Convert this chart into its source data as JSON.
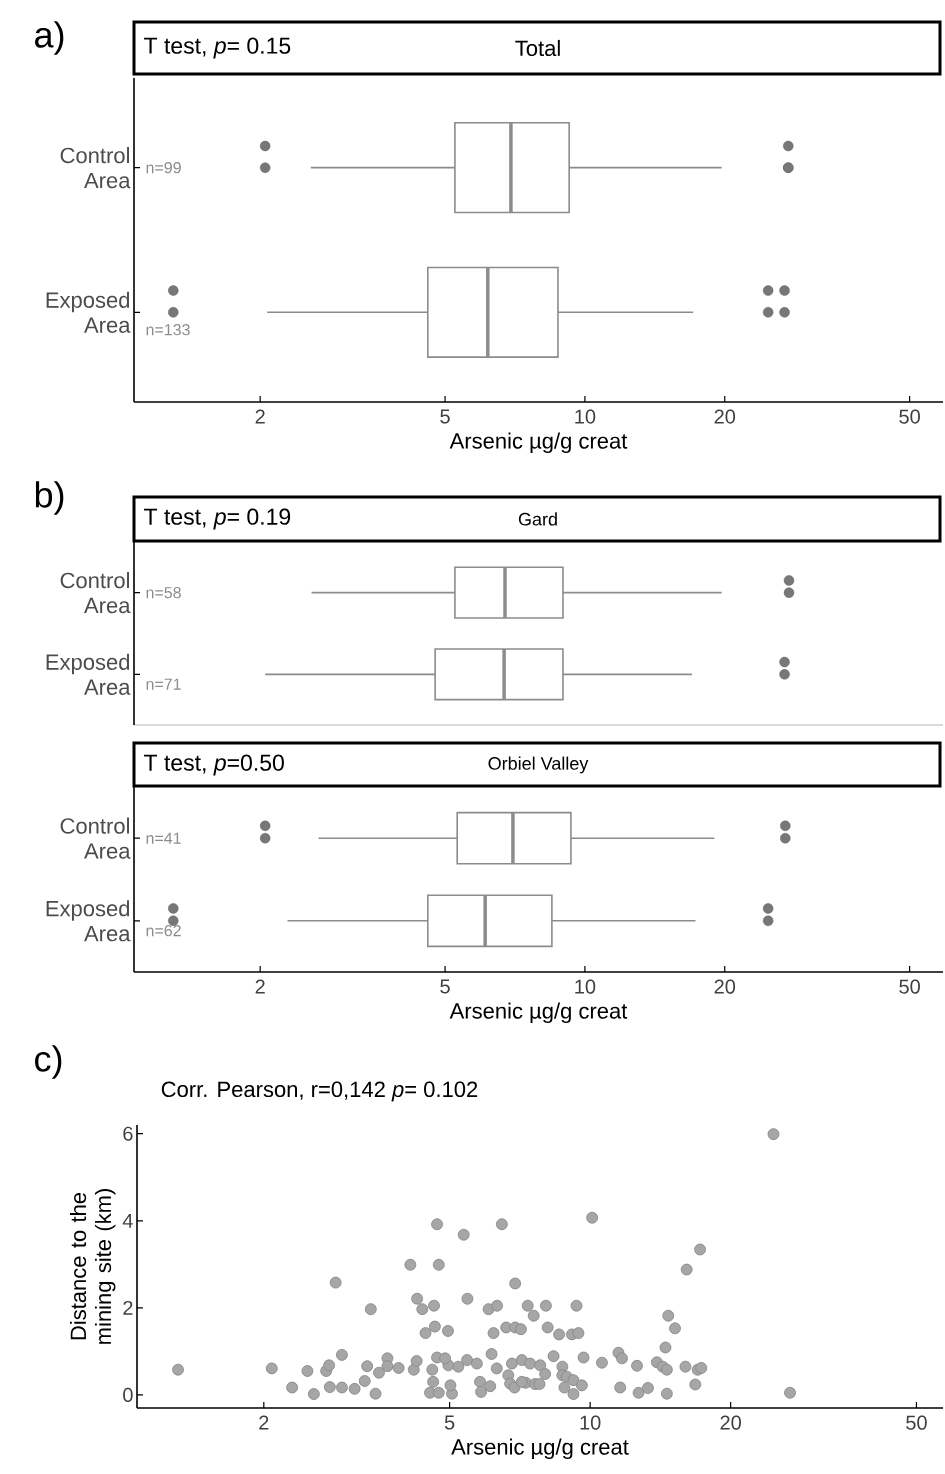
{
  "chart_data": [
    {
      "type": "box",
      "orientation": "horizontal",
      "log": "x",
      "title": "Total",
      "xlabel": "Arsenic µg/g creat",
      "categories": [
        "Control Area",
        "Exposed Area"
      ],
      "color": "#8c8c8c",
      "xlim": [
        1.07,
        59
      ],
      "xticks": [
        2,
        5,
        10,
        20,
        50
      ],
      "boxes": [
        {
          "low": 2.57,
          "q1": 5.25,
          "median": 6.93,
          "q3": 9.25,
          "high": 19.7,
          "outliers": [
            2.05,
            2.05,
            27.4,
            27.4,
            27.4
          ]
        },
        {
          "low": 2.07,
          "q1": 4.59,
          "median": 6.18,
          "q3": 8.75,
          "high": 17.1,
          "outliers": [
            1.3,
            1.3,
            24.8,
            24.8,
            26.9,
            26.9
          ]
        }
      ],
      "annotations": [
        "a)",
        "T test, *p*= 0.15",
        "n=99",
        "n=133"
      ]
    },
    {
      "type": "box",
      "orientation": "horizontal",
      "log": "x",
      "title": "Gard",
      "categories": [
        "Control Area",
        "Exposed Area"
      ],
      "color": "#8c8c8c",
      "xlim": [
        1.07,
        59
      ],
      "xticks": [
        2,
        5,
        10,
        20,
        50
      ],
      "tick_labels": "y",
      "boxes": [
        {
          "low": 2.58,
          "q1": 5.25,
          "median": 6.73,
          "q3": 8.97,
          "high": 19.7,
          "outliers": [
            27.5,
            27.5
          ]
        },
        {
          "low": 2.05,
          "q1": 4.76,
          "median": 6.7,
          "q3": 8.97,
          "high": 17.0,
          "outliers": [
            26.9,
            26.9
          ]
        }
      ],
      "annotations": [
        "b)",
        "T test, *p*= 0.19",
        "n=58",
        "n=71"
      ]
    },
    {
      "type": "box",
      "orientation": "horizontal",
      "log": "x",
      "title": "Orbiel Valley",
      "xlabel": "Arsenic µg/g creat",
      "categories": [
        "Control Area",
        "Exposed Area"
      ],
      "color": "#8c8c8c",
      "xlim": [
        1.07,
        59
      ],
      "xticks": [
        2,
        5,
        10,
        20,
        50
      ],
      "boxes": [
        {
          "low": 2.67,
          "q1": 5.31,
          "median": 7.0,
          "q3": 9.33,
          "high": 19.0,
          "outliers": [
            2.05,
            2.05,
            27.0,
            27.0
          ]
        },
        {
          "low": 2.29,
          "q1": 4.59,
          "median": 6.1,
          "q3": 8.49,
          "high": 17.3,
          "outliers": [
            1.3,
            1.3,
            24.8,
            24.8
          ]
        }
      ],
      "annotations": [
        "T test, *p*=0.50",
        "n=41",
        "n=62"
      ]
    },
    {
      "type": "scatter",
      "log": "x",
      "title": "Corr. Pearson, r=0,142 *p*= 0.102",
      "xlabel": "Arsenic µg/g creat",
      "ylabel": "Distance to the mining site (km)",
      "color": "#a6a6a6",
      "marker": "circle",
      "xlim": [
        1.07,
        57
      ],
      "ylim": [
        -0.3,
        6.2
      ],
      "xticks": [
        2,
        5,
        10,
        20,
        50
      ],
      "yticks": [
        0,
        2,
        4,
        6
      ],
      "x": [
        1.31,
        2.08,
        2.3,
        2.56,
        2.48,
        2.72,
        2.76,
        2.77,
        2.85,
        2.94,
        2.94,
        3.13,
        3.29,
        3.39,
        3.47,
        3.33,
        3.53,
        3.68,
        3.68,
        3.89,
        4.12,
        4.19,
        4.25,
        4.26,
        4.37,
        4.44,
        4.54,
        4.61,
        4.63,
        4.65,
        4.7,
        4.74,
        4.7,
        4.74,
        4.59,
        4.96,
        5.36,
        5.46,
        6.06,
        6.32,
        6.21,
        6.47,
        6.61,
        6.91,
        7.11,
        6.91,
        7.35,
        7.57,
        8.04,
        8.11,
        8.58,
        9.14,
        9.44,
        9.35,
        10.1,
        9.68,
        10.6,
        11.5,
        11.7,
        11.6,
        12.6,
        12.7,
        13.3,
        13.9,
        14.3,
        14.6,
        14.5,
        14.7,
        15.2,
        14.6,
        16.0,
        16.1,
        17.2,
        17.0,
        17.3,
        16.8,
        24.7,
        26.8,
        4.97,
        5.22,
        5.45,
        5.72,
        5.06,
        5.02,
        5.81,
        5.84,
        6.11,
        6.15,
        6.31,
        6.68,
        6.74,
        6.89,
        6.8,
        7.14,
        7.28,
        7.44,
        7.62,
        7.82,
        7.79,
        8.01,
        8.35,
        8.72,
        8.72,
        8.81,
        8.91,
        9.21,
        9.21,
        9.6,
        7.14,
        4.89
      ],
      "values": [
        0.58,
        0.61,
        0.17,
        0.02,
        0.55,
        0.55,
        0.68,
        0.18,
        2.58,
        0.92,
        0.17,
        0.14,
        0.32,
        1.97,
        0.03,
        0.66,
        0.51,
        0.84,
        0.66,
        0.62,
        2.99,
        0.58,
        0.78,
        2.21,
        1.97,
        1.42,
        0.05,
        0.3,
        2.05,
        1.57,
        3.92,
        2.99,
        0.86,
        0.05,
        0.58,
        1.47,
        3.68,
        2.21,
        1.97,
        2.05,
        1.42,
        3.92,
        1.55,
        1.55,
        1.51,
        2.56,
        2.05,
        1.82,
        2.05,
        1.55,
        1.39,
        1.39,
        1.42,
        2.05,
        4.07,
        0.86,
        0.74,
        0.97,
        0.84,
        0.17,
        0.67,
        0.05,
        0.16,
        0.75,
        0.65,
        0.58,
        1.09,
        1.82,
        1.53,
        0.03,
        0.65,
        2.88,
        3.34,
        0.58,
        0.62,
        0.24,
        5.99,
        0.05,
        0.68,
        0.65,
        0.8,
        0.72,
        0.03,
        0.22,
        0.3,
        0.07,
        0.2,
        0.94,
        0.61,
        0.45,
        0.26,
        0.17,
        0.72,
        0.8,
        0.28,
        0.72,
        0.25,
        0.68,
        0.25,
        0.48,
        0.89,
        0.65,
        0.45,
        0.17,
        0.42,
        0.02,
        0.34,
        0.22,
        0.3,
        0.84
      ],
      "annotations": [
        "c)"
      ]
    }
  ]
}
